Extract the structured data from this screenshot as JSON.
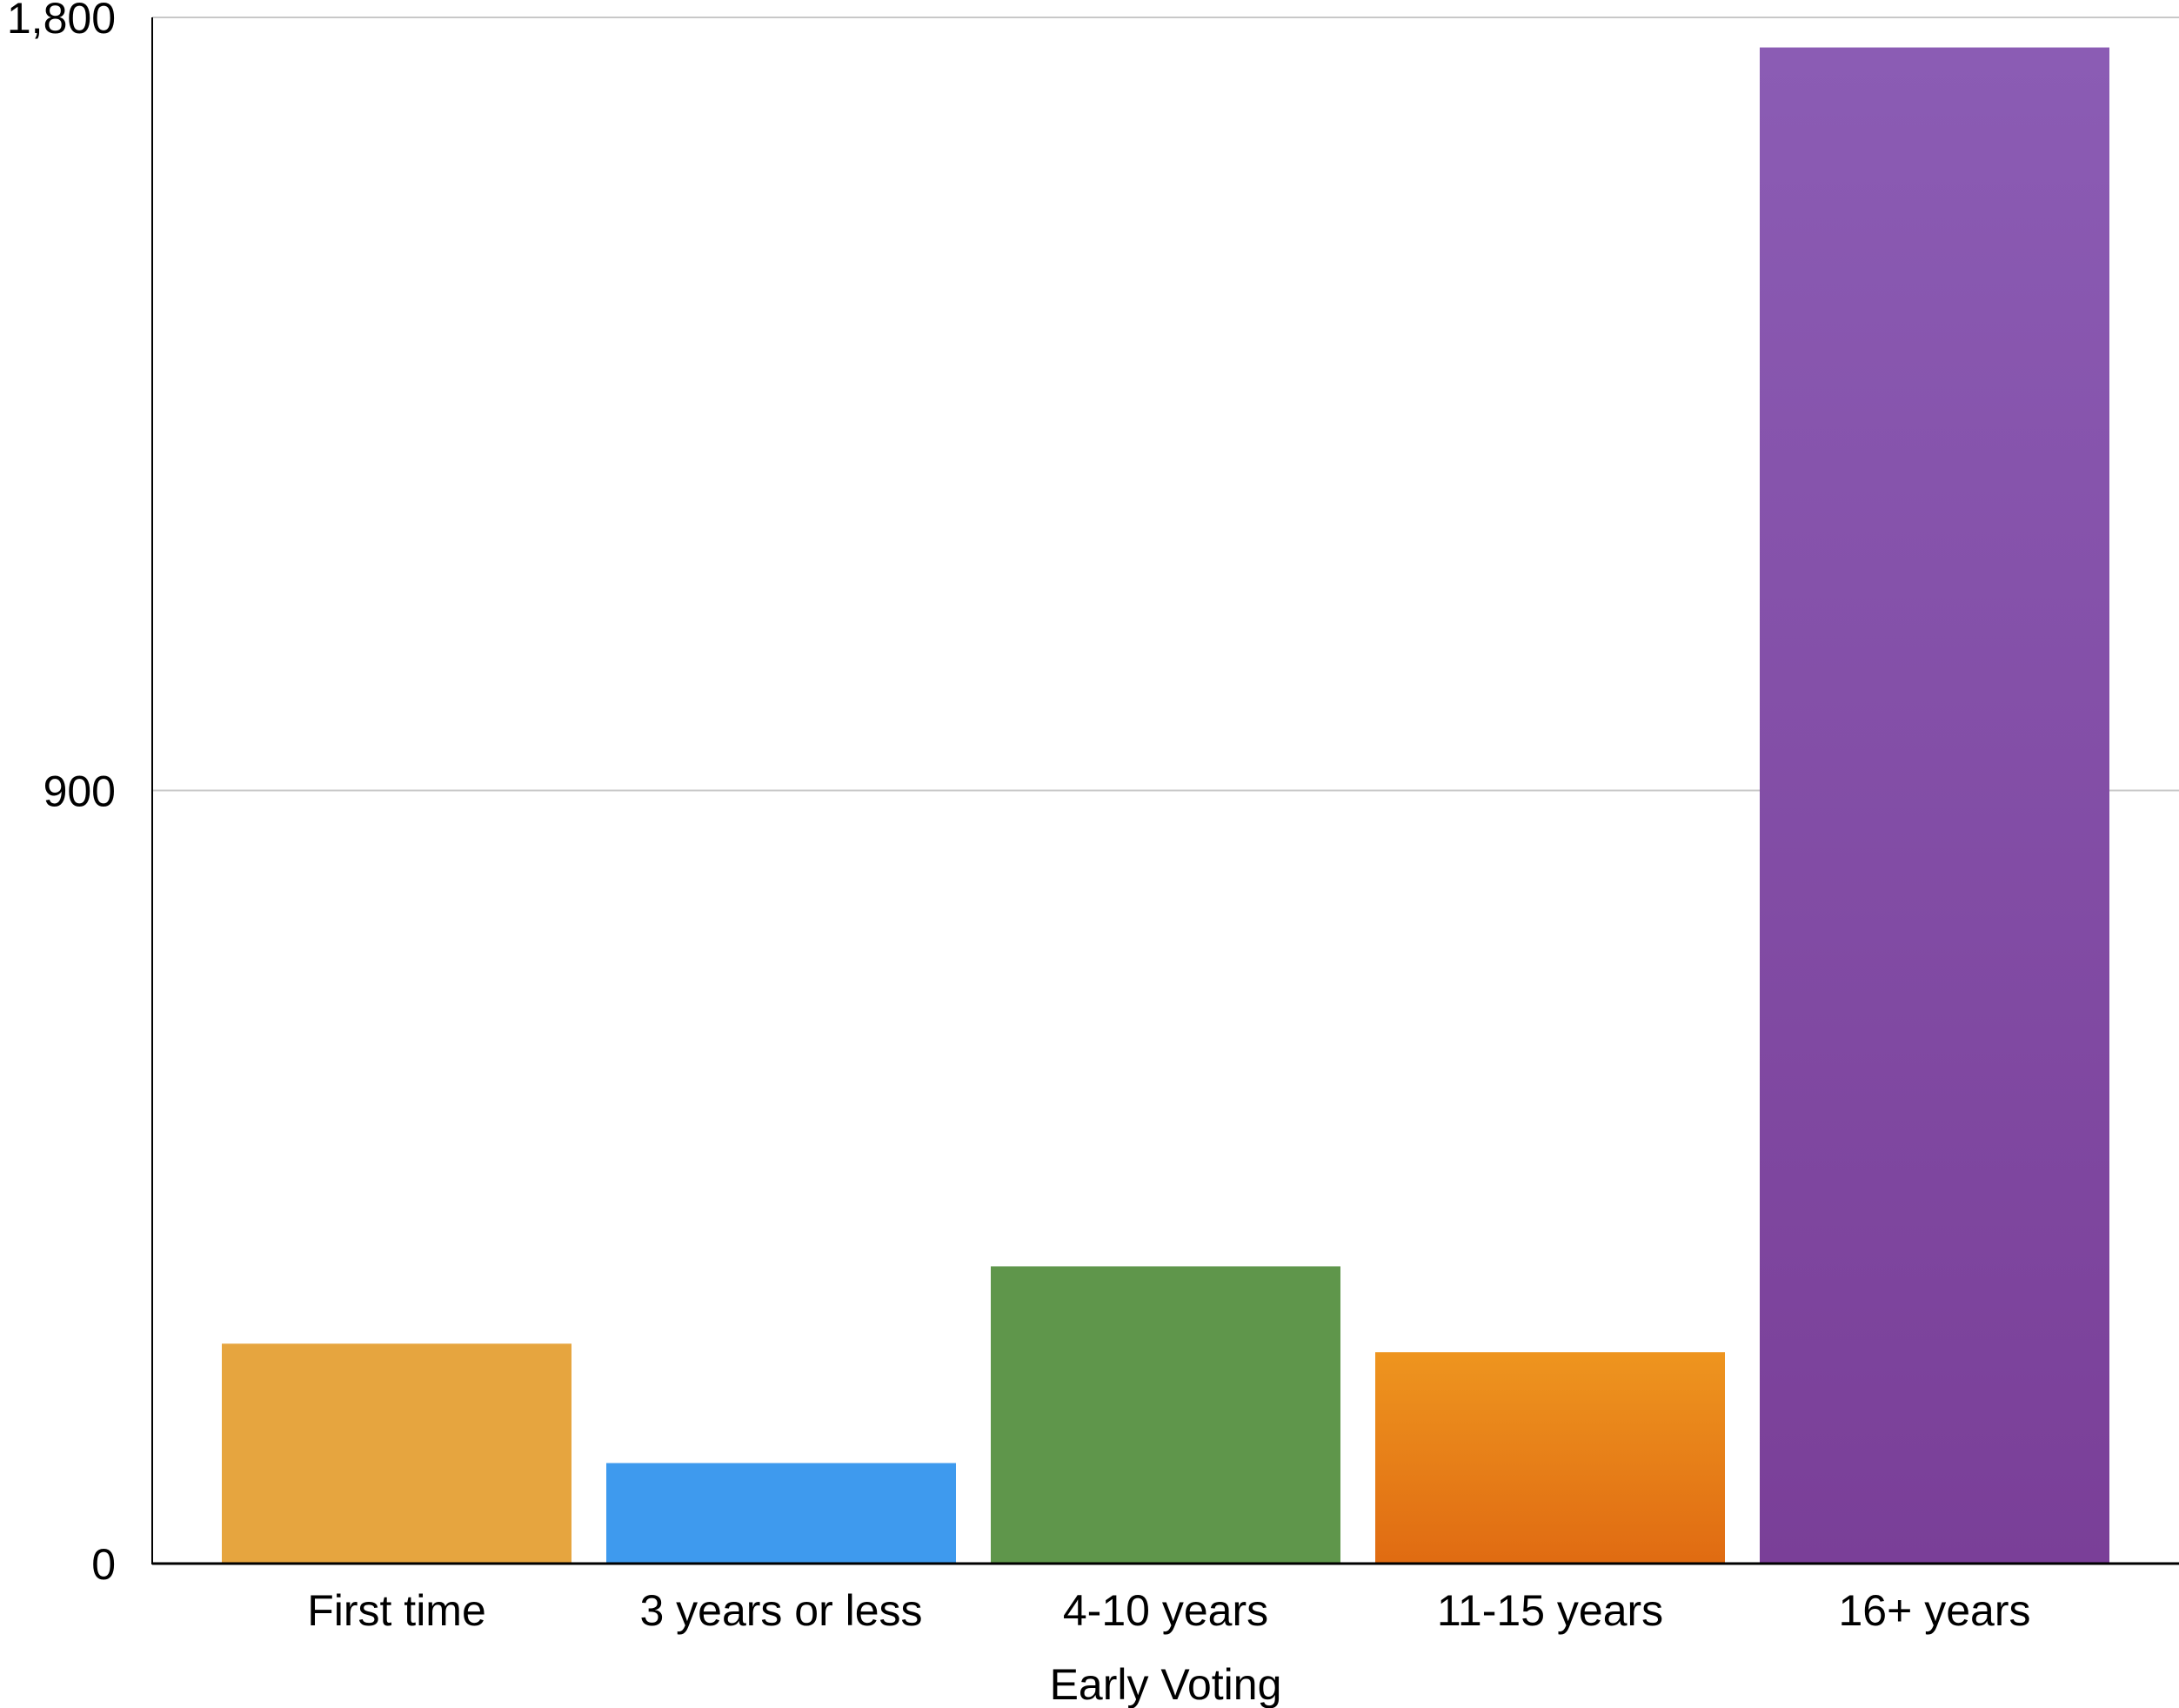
{
  "chart_data": {
    "type": "bar",
    "categories": [
      "First time",
      "3 years or less",
      "4-10 years",
      "11-15 years",
      "16+ years"
    ],
    "values": [
      256,
      117,
      346,
      246,
      1765
    ],
    "colors_top": [
      "#e6a53f",
      "#3e9aee",
      "#5f964b",
      "#ee951f",
      "#8b5cb4"
    ],
    "colors_bottom": [
      "#e6a53f",
      "#3e9aee",
      "#5f964b",
      "#e06b12",
      "#7a3f98"
    ],
    "xlabel": "Early Voting",
    "ylabel": "",
    "ylim": [
      0,
      1800
    ],
    "yticks": [
      0,
      900,
      1800
    ],
    "ytick_labels": [
      "0",
      "900",
      "1,800"
    ],
    "grid": true,
    "gridline_color": "#c8c8c8",
    "axis_color": "#000000"
  }
}
